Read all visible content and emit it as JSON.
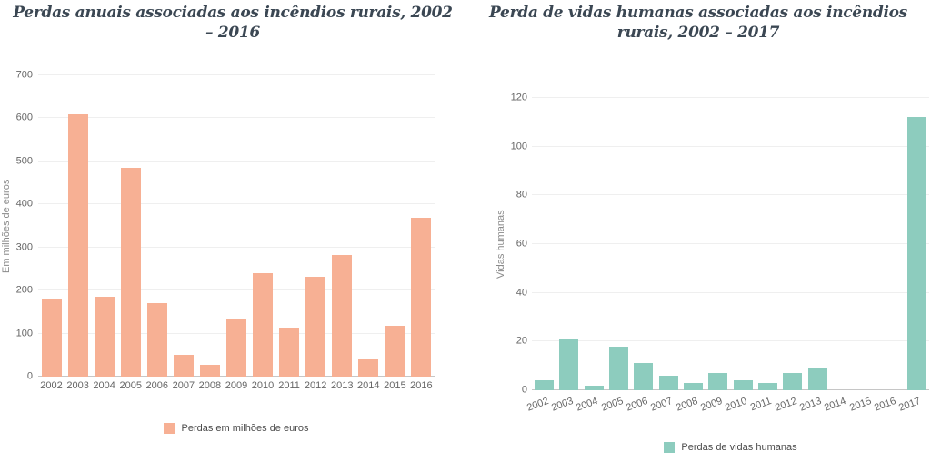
{
  "chart_data": [
    {
      "type": "bar",
      "title": "Perdas anuais associadas aos incêndios rurais, 2002 – 2016",
      "ylabel": "Em milhões de euros",
      "xlabel": "",
      "legend": "Perdas em milhões de euros",
      "categories": [
        "2002",
        "2003",
        "2004",
        "2005",
        "2006",
        "2007",
        "2008",
        "2009",
        "2010",
        "2011",
        "2012",
        "2013",
        "2014",
        "2015",
        "2016"
      ],
      "values": [
        180,
        610,
        185,
        485,
        170,
        50,
        27,
        135,
        240,
        113,
        233,
        283,
        40,
        118,
        368
      ],
      "ylim": [
        0,
        700
      ],
      "yticks": [
        0,
        100,
        200,
        300,
        400,
        500,
        600,
        700
      ],
      "bar_color": "#f7b094",
      "grid": true,
      "legend_position": "bottom"
    },
    {
      "type": "bar",
      "title": "Perda de vidas humanas associadas aos incêndios rurais, 2002 – 2017",
      "ylabel": "Vidas humanas",
      "xlabel": "",
      "legend": "Perdas de vidas humanas",
      "categories": [
        "2002",
        "2003",
        "2004",
        "2005",
        "2006",
        "2007",
        "2008",
        "2009",
        "2010",
        "2011",
        "2012",
        "2013",
        "2014",
        "2015",
        "2016",
        "2017"
      ],
      "values": [
        4,
        21,
        2,
        18,
        11,
        6,
        3,
        7,
        4,
        3,
        7,
        9,
        0,
        0,
        0,
        112
      ],
      "ylim": [
        0,
        120
      ],
      "yticks": [
        0,
        20,
        40,
        60,
        80,
        100,
        120
      ],
      "bar_color": "#8dccbe",
      "grid": true,
      "legend_position": "bottom"
    }
  ]
}
